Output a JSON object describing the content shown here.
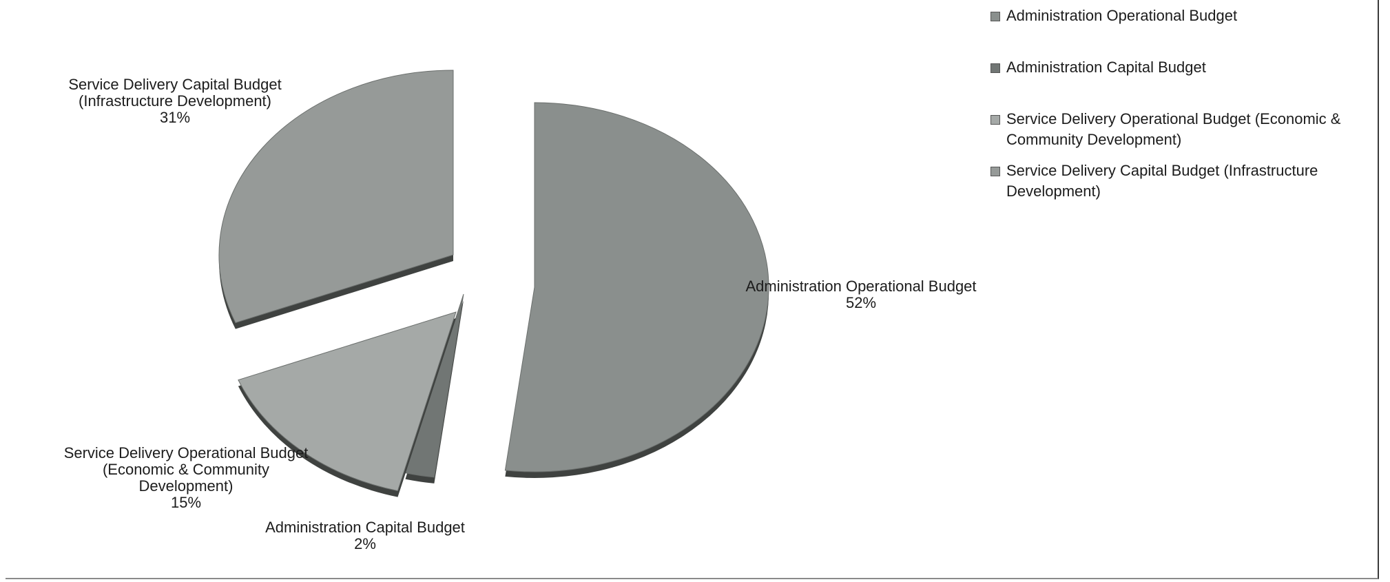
{
  "chart_data": {
    "type": "pie",
    "title": "",
    "slices": [
      {
        "label": "Administration Operational Budget",
        "value": 52,
        "value_label": "52%",
        "color": "#8a8f8d"
      },
      {
        "label": "Administration Capital Budget",
        "value": 2,
        "value_label": "2%",
        "color": "#717674"
      },
      {
        "label": "Service Delivery Operational Budget (Economic & Community Development)",
        "value": 15,
        "value_label": "15%",
        "color": "#a5a9a7"
      },
      {
        "label": "Service Delivery Capital Budget (Infrastructure Development)",
        "value": 31,
        "value_label": "31%",
        "color": "#969a98"
      }
    ],
    "legend": {
      "placement": "top-right",
      "items": [
        "Administration Operational Budget",
        "Administration Capital Budget",
        "Service Delivery Operational Budget (Economic & Community Development)",
        "Service Delivery Capital Budget (Infrastructure Development)"
      ]
    },
    "exploded": true,
    "style": "3d"
  },
  "colors": {
    "edge_dark": "#3f4240",
    "depth": "#6a6e6c"
  }
}
